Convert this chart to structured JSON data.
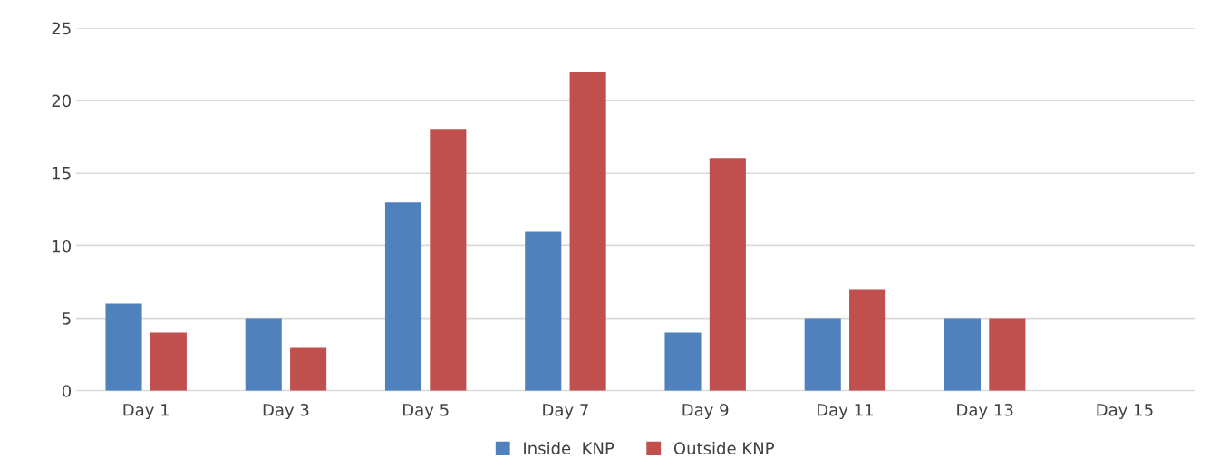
{
  "chart_data": {
    "type": "bar",
    "categories": [
      "Day 1",
      "Day 3",
      "Day 5",
      "Day 7",
      "Day 9",
      "Day 11",
      "Day 13",
      "Day 15"
    ],
    "series": [
      {
        "name": "Inside  KNP",
        "color": "#4f81bd",
        "values": [
          6,
          5,
          13,
          11,
          4,
          5,
          5,
          null
        ]
      },
      {
        "name": "Outside KNP",
        "color": "#c0504d",
        "values": [
          4,
          3,
          18,
          22,
          16,
          7,
          5,
          null
        ]
      }
    ],
    "ylim": [
      0,
      25
    ],
    "yticks": [
      0,
      5,
      10,
      15,
      20,
      25
    ],
    "grid": "y",
    "legend": "bottom"
  }
}
